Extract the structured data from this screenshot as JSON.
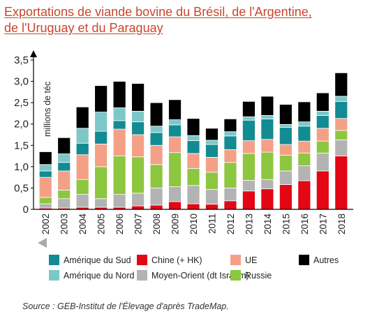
{
  "title": {
    "line1": "Exportations de viande bovine du Brésil, de l'Argentine,",
    "line2": "de l'Uruguay et du Paraguay"
  },
  "source": "Source : GEB-Institut de l'Élevage d'après TradeMap.",
  "chart_data": {
    "type": "bar",
    "stacked": true,
    "title": "Exportations de viande bovine du Brésil, de l'Argentine, de l'Uruguay et du Paraguay",
    "xlabel": "",
    "ylabel": "millions de téc",
    "ylim": [
      0,
      3.5
    ],
    "yticks": [
      "0",
      "0,5",
      "1,0",
      "1,5",
      "2,0",
      "2,5",
      "3,0",
      "3,5"
    ],
    "ytick_values": [
      0,
      0.5,
      1.0,
      1.5,
      2.0,
      2.5,
      3.0,
      3.5
    ],
    "grid": false,
    "legend_position": "bottom",
    "categories": [
      "2002",
      "2003",
      "2004",
      "2005",
      "2006",
      "2007",
      "2008",
      "2009",
      "2010",
      "2011",
      "2012",
      "2013",
      "2014",
      "2015",
      "2016",
      "2017",
      "2018"
    ],
    "series": [
      {
        "name": "Chine (+ HK)",
        "color": "#e30613",
        "values": [
          0.03,
          0.03,
          0.05,
          0.05,
          0.05,
          0.08,
          0.1,
          0.18,
          0.13,
          0.12,
          0.2,
          0.43,
          0.48,
          0.58,
          0.67,
          0.9,
          1.25
        ]
      },
      {
        "name": "Moyen-Orient (dt Israëm)",
        "color": "#b3b3b3",
        "values": [
          0.1,
          0.22,
          0.3,
          0.2,
          0.3,
          0.3,
          0.4,
          0.35,
          0.43,
          0.35,
          0.3,
          0.25,
          0.22,
          0.32,
          0.35,
          0.42,
          0.38
        ]
      },
      {
        "name": "Russie",
        "color": "#8dc63f",
        "values": [
          0.15,
          0.2,
          0.35,
          0.75,
          0.9,
          0.85,
          0.55,
          0.8,
          0.4,
          0.4,
          0.6,
          0.63,
          0.64,
          0.37,
          0.3,
          0.28,
          0.22
        ]
      },
      {
        "name": "UE",
        "color": "#f4a086",
        "values": [
          0.47,
          0.45,
          0.58,
          0.53,
          0.63,
          0.52,
          0.45,
          0.37,
          0.35,
          0.35,
          0.3,
          0.3,
          0.3,
          0.25,
          0.28,
          0.3,
          0.28
        ]
      },
      {
        "name": "Amérique du Sud",
        "color": "#138b92",
        "values": [
          0.15,
          0.2,
          0.27,
          0.3,
          0.2,
          0.3,
          0.3,
          0.28,
          0.3,
          0.3,
          0.32,
          0.48,
          0.48,
          0.4,
          0.35,
          0.3,
          0.4
        ]
      },
      {
        "name": "Amérique du Nord",
        "color": "#7cc8c8",
        "values": [
          0.15,
          0.2,
          0.35,
          0.45,
          0.3,
          0.25,
          0.15,
          0.12,
          0.12,
          0.1,
          0.1,
          0.08,
          0.08,
          0.07,
          0.1,
          0.1,
          0.12
        ]
      },
      {
        "name": "Autres",
        "color": "#000000",
        "values": [
          0.3,
          0.38,
          0.5,
          0.62,
          0.62,
          0.65,
          0.55,
          0.47,
          0.4,
          0.28,
          0.3,
          0.36,
          0.45,
          0.47,
          0.47,
          0.43,
          0.55
        ]
      }
    ]
  },
  "legend_order": [
    {
      "series_index": 4
    },
    {
      "series_index": 0
    },
    {
      "series_index": 3
    },
    {
      "series_index": 6
    },
    {
      "series_index": 5
    },
    {
      "series_index": 1
    },
    {
      "series_index": 2
    }
  ]
}
